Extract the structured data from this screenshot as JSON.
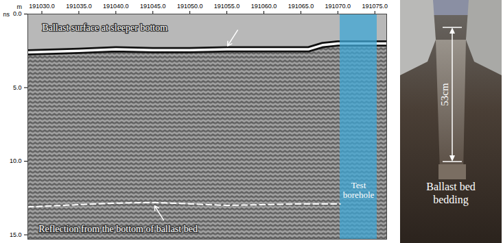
{
  "chart_data": {
    "type": "radargram",
    "x_label": "m",
    "y_label": "ns",
    "xlim": [
      191028.1,
      191076.6
    ],
    "ylim": [
      0,
      15.3
    ],
    "xticks": [
      {
        "value": 191030,
        "label": "191030.0"
      },
      {
        "value": 191035,
        "label": "191035.0"
      },
      {
        "value": 191040,
        "label": "191040.0"
      },
      {
        "value": 191045,
        "label": "191045.0"
      },
      {
        "value": 191050,
        "label": "191050.0"
      },
      {
        "value": 191055,
        "label": "191055.0"
      },
      {
        "value": 191060,
        "label": "191060.0"
      },
      {
        "value": 191065,
        "label": "191065.0"
      },
      {
        "value": 191070,
        "label": "191070.0"
      },
      {
        "value": 191075,
        "label": "191075.0"
      }
    ],
    "yticks": [
      {
        "value": 0,
        "label": "0.0"
      },
      {
        "value": 5,
        "label": "5.0"
      },
      {
        "value": 10,
        "label": "10.0"
      },
      {
        "value": 15,
        "label": "15.0"
      }
    ],
    "surface": {
      "label": "Ballast surface at sleeper bottom",
      "x": [
        191028.1,
        191035,
        191040,
        191045,
        191050,
        191055,
        191060,
        191066,
        191068,
        191070,
        191076.6
      ],
      "y": [
        2.6,
        2.5,
        2.4,
        2.45,
        2.45,
        2.4,
        2.4,
        2.4,
        2.1,
        2.0,
        2.0
      ]
    },
    "bottom": {
      "label": "Reflection from the bottom of ballast bed",
      "x": [
        191028.1,
        191035,
        191040,
        191045,
        191050,
        191055,
        191060,
        191065,
        191070.3
      ],
      "y": [
        13.1,
        12.95,
        12.85,
        12.8,
        12.9,
        13.0,
        12.95,
        12.9,
        12.9
      ],
      "line_style": "dashed"
    },
    "borehole": {
      "label": "Test borehole",
      "x": [
        191070.3,
        191075.3
      ],
      "color": "#3fa7d6"
    }
  },
  "photo": {
    "depth_label": "53cm",
    "caption": "Ballast bed bedding"
  }
}
